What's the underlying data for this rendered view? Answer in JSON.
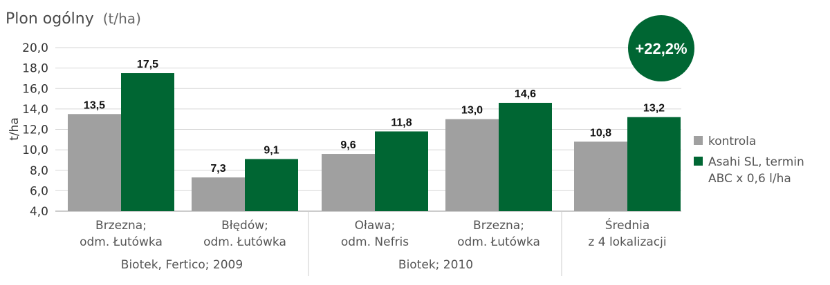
{
  "chart_data": {
    "type": "bar",
    "title": "Plon ogólny",
    "title_unit": "(t/ha)",
    "ylabel": "t/ha",
    "ylim": [
      4,
      20
    ],
    "y_ticks": [
      "4,0",
      "6,0",
      "8,0",
      "10,0",
      "12,0",
      "14,0",
      "16,0",
      "18,0",
      "20,0"
    ],
    "grid": true,
    "legend_position": "right",
    "categories": [
      [
        "Brzezna;",
        "odm. Łutówka"
      ],
      [
        "Błędów;",
        "odm. Łutówka"
      ],
      [
        "Oława;",
        "odm. Nefris"
      ],
      [
        "Brzezna;",
        "odm. Łutówka"
      ],
      [
        "Średnia",
        "z 4 lokalizacji"
      ]
    ],
    "groups": [
      {
        "label": "Biotek, Fertico; 2009",
        "categories": [
          0,
          1
        ]
      },
      {
        "label": "Biotek; 2010",
        "categories": [
          2,
          3
        ]
      },
      {
        "label": "",
        "categories": [
          4
        ]
      }
    ],
    "series": [
      {
        "name": "kontrola",
        "color": "#a0a0a0",
        "values": [
          13.5,
          7.3,
          9.6,
          13.0,
          10.8
        ],
        "labels": [
          "13,5",
          "7,3",
          "9,6",
          "13,0",
          "10,8"
        ]
      },
      {
        "name": [
          "Asahi SL, termin",
          "ABC x 0,6 l/ha"
        ],
        "color": "#006633",
        "values": [
          17.5,
          9.1,
          11.8,
          14.6,
          13.2
        ],
        "labels": [
          "17,5",
          "9,1",
          "11,8",
          "14,6",
          "13,2"
        ]
      }
    ],
    "annotation": "+22,2%",
    "annotation_color": "#006633"
  }
}
